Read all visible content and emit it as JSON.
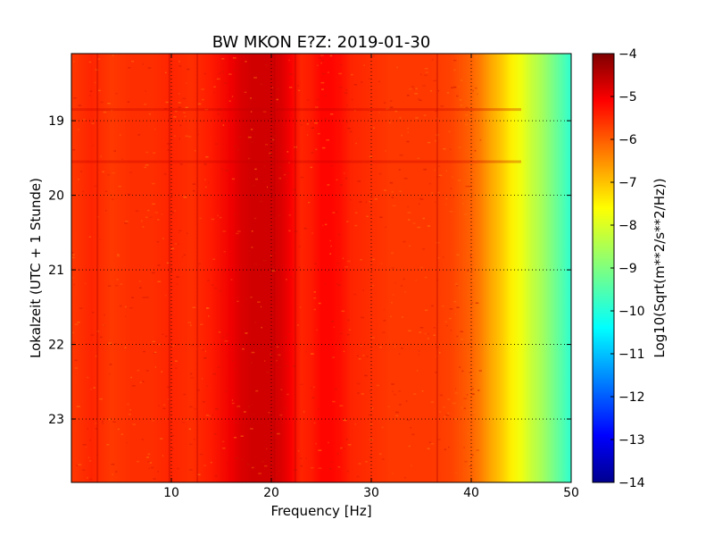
{
  "chart_data": {
    "type": "heatmap",
    "title": "BW MKON E?Z: 2019-01-30",
    "xlabel": "Frequency [Hz]",
    "ylabel": "Lokalzeit (UTC + 1 Stunde)",
    "xlim": [
      0,
      50
    ],
    "ylim": [
      18.1,
      23.85
    ],
    "y_inverted": true,
    "x_ticks": [
      10,
      20,
      30,
      40,
      50
    ],
    "x_tick_labels": [
      "10",
      "20",
      "30",
      "40",
      "50"
    ],
    "y_ticks": [
      19,
      20,
      21,
      22,
      23
    ],
    "y_tick_labels": [
      "19",
      "20",
      "21",
      "22",
      "23"
    ],
    "grid": true,
    "grid_style": "dotted",
    "colormap": "jet",
    "colorbar": {
      "label": "Log10(Sqrt(m**2/s**2/Hz))",
      "range": [
        -14,
        -4
      ],
      "ticks": [
        -4,
        -5,
        -6,
        -7,
        -8,
        -9,
        -10,
        -11,
        -12,
        -13,
        -14
      ],
      "tick_labels": [
        "−4",
        "−5",
        "−6",
        "−7",
        "−8",
        "−9",
        "−10",
        "−11",
        "−12",
        "−13",
        "−14"
      ]
    },
    "spectral_profile": {
      "frequency": [
        0,
        2,
        4,
        6,
        8,
        10,
        12,
        14,
        16,
        17,
        18,
        19,
        20,
        21,
        22,
        23,
        24,
        25,
        26,
        27,
        28,
        30,
        32,
        34,
        36,
        38,
        40,
        41,
        42,
        43,
        44,
        45,
        46,
        47,
        48,
        49,
        50
      ],
      "level": [
        -5.8,
        -5.6,
        -5.8,
        -5.7,
        -5.7,
        -5.6,
        -5.7,
        -5.5,
        -5.1,
        -4.9,
        -4.8,
        -4.8,
        -4.8,
        -4.9,
        -5.2,
        -5.6,
        -5.5,
        -5.3,
        -5.3,
        -5.4,
        -5.6,
        -5.7,
        -5.8,
        -5.8,
        -5.8,
        -5.9,
        -6.2,
        -6.5,
        -6.9,
        -7.2,
        -7.6,
        -7.9,
        -8.3,
        -8.6,
        -9.0,
        -9.4,
        -9.8
      ]
    }
  }
}
